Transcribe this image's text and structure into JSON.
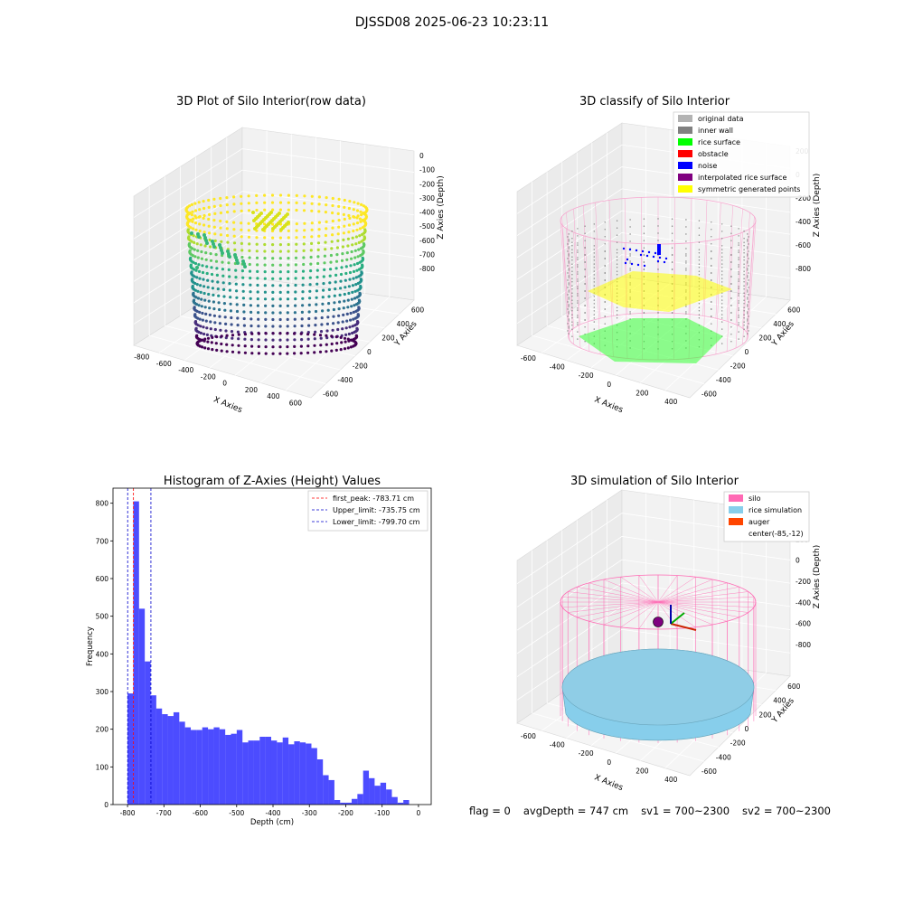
{
  "figure": {
    "suptitle": "DJSSD08 2025-06-23 10:23:11",
    "status": {
      "flag": "flag = 0",
      "avg_depth": "avgDepth = 747 cm",
      "sv1": "sv1 = 700~2300",
      "sv2": "sv2 = 700~2300"
    }
  },
  "chart_data": [
    {
      "type": "scatter3d",
      "title": "3D Plot of Silo Interior(row data)",
      "xlabel": "X Axies",
      "ylabel": "Y Axies",
      "zlabel": "Z Axies (Depth)",
      "xticks": [
        "-800",
        "-600",
        "-400",
        "-200",
        "0",
        "200",
        "400",
        "600"
      ],
      "yticks": [
        "-600",
        "-400",
        "-200",
        "0",
        "200",
        "400",
        "600"
      ],
      "zticks": [
        "0",
        "-100",
        "-200",
        "-300",
        "-400",
        "-500",
        "-600",
        "-700",
        "-800"
      ],
      "colormap": "viridis"
    },
    {
      "type": "scatter3d",
      "title": "3D classify of Silo Interior",
      "xlabel": "X Axies",
      "ylabel": "Y Axies",
      "zlabel": "Z Axies (Depth)",
      "xticks": [
        "-600",
        "-400",
        "-200",
        "0",
        "200",
        "400"
      ],
      "yticks": [
        "-600",
        "-400",
        "-200",
        "0",
        "200",
        "400",
        "600"
      ],
      "zticks": [
        "200",
        "0",
        "-200",
        "-400",
        "-600",
        "-800"
      ],
      "legend_position": "top-right",
      "legend": [
        {
          "label": "original data",
          "color": "#b3b3b3"
        },
        {
          "label": "inner wall",
          "color": "#808080"
        },
        {
          "label": "rice surface",
          "color": "#00ff00"
        },
        {
          "label": "obstacle",
          "color": "#ff0000"
        },
        {
          "label": "noise",
          "color": "#0000ff"
        },
        {
          "label": "interpolated rice surface",
          "color": "#800080"
        },
        {
          "label": "symmetric generated points",
          "color": "#ffff00"
        }
      ]
    },
    {
      "type": "bar",
      "title": "Histogram of Z-Axies (Height) Values",
      "xlabel": "Depth (cm)",
      "ylabel": "Frequency",
      "xlim": [
        -840,
        35
      ],
      "ylim": [
        0,
        840
      ],
      "xticks": [
        -800,
        -700,
        -600,
        -500,
        -400,
        -300,
        -200,
        -100,
        0
      ],
      "yticks": [
        0,
        100,
        200,
        300,
        400,
        500,
        600,
        700,
        800
      ],
      "bin_width": 15.8,
      "bin_start": -800,
      "color": "#0000ff",
      "values": [
        295,
        805,
        520,
        380,
        290,
        255,
        240,
        235,
        245,
        220,
        205,
        198,
        198,
        205,
        200,
        205,
        200,
        185,
        188,
        198,
        165,
        170,
        170,
        180,
        180,
        170,
        165,
        178,
        160,
        168,
        165,
        162,
        150,
        120,
        78,
        65,
        12,
        5,
        5,
        15,
        28,
        90,
        70,
        50,
        58,
        40,
        20,
        5,
        12
      ],
      "vlines": [
        {
          "x": -783.71,
          "color": "#ff0000",
          "label": "first_peak: -783.71 cm"
        },
        {
          "x": -735.75,
          "color": "#0000cc",
          "label": "Upper_limit: -735.75 cm"
        },
        {
          "x": -799.7,
          "color": "#0000cc",
          "label": "Lower_limit: -799.70 cm"
        }
      ],
      "legend_position": "top-right"
    },
    {
      "type": "surface3d",
      "title": "3D simulation of Silo Interior",
      "xlabel": "X Axies",
      "ylabel": "Y Axies",
      "zlabel": "Z Axies (Depth)",
      "xticks": [
        "-600",
        "-400",
        "-200",
        "0",
        "200",
        "400"
      ],
      "yticks": [
        "-600",
        "-400",
        "-200",
        "0",
        "200",
        "400",
        "600"
      ],
      "zticks": [
        "400",
        "200",
        "0",
        "-200",
        "-400",
        "-600",
        "-800"
      ],
      "legend_position": "top-right",
      "legend": [
        {
          "label": "silo",
          "color": "#ff69b4"
        },
        {
          "label": "rice simulation",
          "color": "#87ceeb"
        },
        {
          "label": "auger",
          "color": "#ff4500"
        },
        {
          "label": "center(-85,-12)",
          "color": ""
        }
      ]
    }
  ]
}
